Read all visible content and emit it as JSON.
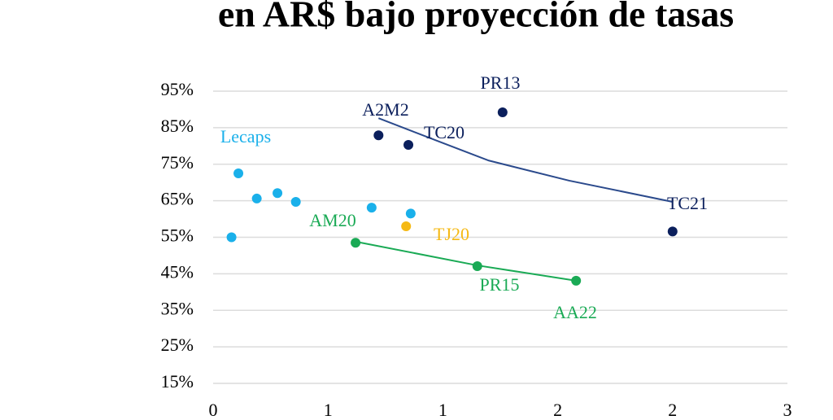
{
  "chart_data": {
    "type": "scatter",
    "title": "en AR$ bajo proyección de tasas",
    "xlim": [
      0,
      2.5
    ],
    "xticks": [
      0,
      {
        "value": 0.5,
        "label": "1"
      },
      {
        "value": 1,
        "label": "1"
      },
      {
        "value": 1.5,
        "label": "2"
      },
      {
        "value": 2,
        "label": "2"
      },
      {
        "value": 2.5,
        "label": "3"
      }
    ],
    "ylim": [
      15,
      95
    ],
    "yticks": [
      {
        "value": 15,
        "label": "15%"
      },
      {
        "value": 25,
        "label": "25%"
      },
      {
        "value": 35,
        "label": "35%"
      },
      {
        "value": 45,
        "label": "45%"
      },
      {
        "value": 55,
        "label": "55%"
      },
      {
        "value": 65,
        "label": "65%"
      },
      {
        "value": 75,
        "label": "75%"
      },
      {
        "value": 85,
        "label": "85%"
      },
      {
        "value": 95,
        "label": "95%"
      }
    ],
    "grid": true,
    "series": [
      {
        "name": "Lecaps",
        "color": "#1ab0ea",
        "x": [
          0.08,
          0.11,
          0.19,
          0.28,
          0.36,
          0.69,
          0.86
        ],
        "values": [
          55,
          72.5,
          65.6,
          67.1,
          64.7,
          63.1,
          61.5
        ]
      },
      {
        "name": "TJ20",
        "color": "#f5b914",
        "x": [
          0.84
        ],
        "values": [
          58
        ]
      },
      {
        "color": "#0b1f5c",
        "labels": [
          "A2M2",
          "TC20",
          "PR13",
          "TC21"
        ],
        "x": [
          0.72,
          0.85,
          1.26,
          2.0
        ],
        "values": [
          82.9,
          80.3,
          89.2,
          56.6
        ]
      },
      {
        "color": "#1aaa55",
        "labels": [
          "AM20",
          "PR15",
          "AA22"
        ],
        "x": [
          0.62,
          1.15,
          1.58
        ],
        "values": [
          53.5,
          47.1,
          43.1
        ]
      }
    ],
    "trendlines": [
      {
        "color": "#2b4a8c",
        "x": [
          0.72,
          1.0,
          1.2,
          1.55,
          2.0
        ],
        "values": [
          87.6,
          80.8,
          76.0,
          70.5,
          64.7
        ]
      },
      {
        "color": "#1aaa55",
        "x": [
          0.62,
          1.15,
          1.58
        ],
        "values": [
          53.8,
          47.3,
          43.1
        ]
      }
    ]
  }
}
